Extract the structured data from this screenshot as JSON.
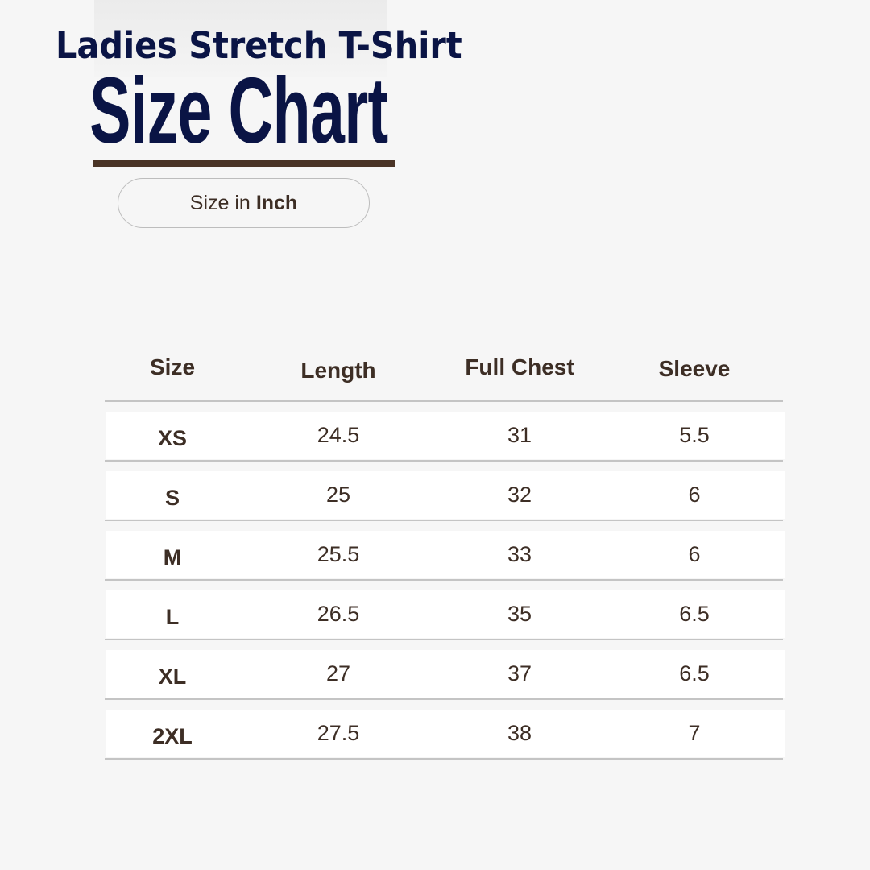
{
  "header": {
    "subtitle": "Ladies Stretch T-Shirt",
    "title": "Size Chart",
    "unit_prefix": "Size in",
    "unit": "Inch"
  },
  "colors": {
    "title": "#0a1445",
    "accent_bar": "#4a3426",
    "text": "#3d2e25"
  },
  "table": {
    "columns": [
      "Size",
      "Length",
      "Full Chest",
      "Sleeve"
    ],
    "rows": [
      [
        "XS",
        "24.5",
        "31",
        "5.5"
      ],
      [
        "S",
        "25",
        "32",
        "6"
      ],
      [
        "M",
        "25.5",
        "33",
        "6"
      ],
      [
        "L",
        "26.5",
        "35",
        "6.5"
      ],
      [
        "XL",
        "27",
        "37",
        "6.5"
      ],
      [
        "2XL",
        "27.5",
        "38",
        "7"
      ]
    ]
  }
}
